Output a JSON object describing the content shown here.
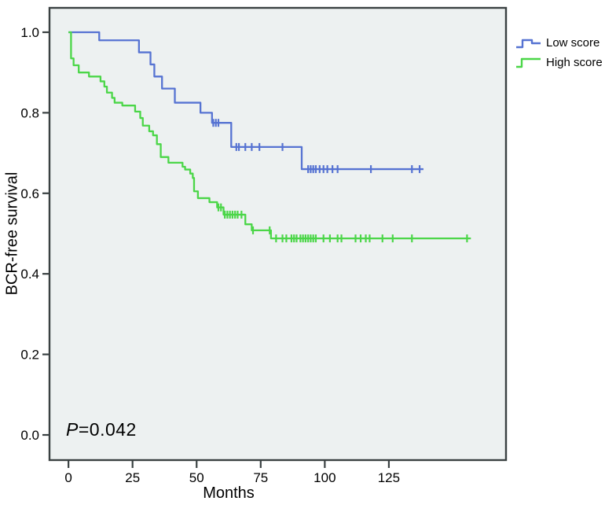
{
  "chart_data": {
    "type": "line",
    "subtype": "kaplan-meier-step-survival",
    "title": "",
    "xlabel": "Months",
    "ylabel": "BCR-free survival",
    "xlim": [
      -7.4,
      170.7
    ],
    "ylim": [
      -0.0625,
      1.0605
    ],
    "xticks": [
      0,
      25,
      50,
      75,
      100,
      125
    ],
    "yticks": [
      0.0,
      0.2,
      0.4,
      0.6,
      0.8,
      1.0
    ],
    "grid": false,
    "legend_position": "top-right-outside",
    "plot_bg_color": "#edf1f1",
    "axis_color": "#3a4142",
    "annotation": {
      "p_italic": "P",
      "p_rest": "=0.042"
    },
    "series": [
      {
        "name": "Low score",
        "color": "#5673d2",
        "end": 138.5,
        "steps": [
          {
            "t": 0,
            "s": 1.0
          },
          {
            "t": 12,
            "s": 0.98
          },
          {
            "t": 27.5,
            "s": 0.95
          },
          {
            "t": 32,
            "s": 0.92
          },
          {
            "t": 33.5,
            "s": 0.89
          },
          {
            "t": 36.5,
            "s": 0.86
          },
          {
            "t": 41.5,
            "s": 0.825
          },
          {
            "t": 51.5,
            "s": 0.8
          },
          {
            "t": 56,
            "s": 0.775
          },
          {
            "t": 63.5,
            "s": 0.715
          },
          {
            "t": 91,
            "s": 0.66
          }
        ],
        "censors": [
          56.5,
          57.5,
          58.5,
          65.5,
          66.5,
          69,
          71.5,
          74.5,
          83.5,
          93.5,
          94.5,
          95.5,
          96.5,
          98,
          99.5,
          101,
          103,
          105,
          118,
          134,
          137
        ]
      },
      {
        "name": "High score",
        "color": "#4bd648",
        "end": 157,
        "steps": [
          {
            "t": 0,
            "s": 1.0
          },
          {
            "t": 1,
            "s": 0.935
          },
          {
            "t": 2,
            "s": 0.918
          },
          {
            "t": 4,
            "s": 0.9
          },
          {
            "t": 8,
            "s": 0.89
          },
          {
            "t": 12.5,
            "s": 0.878
          },
          {
            "t": 14,
            "s": 0.865
          },
          {
            "t": 15,
            "s": 0.85
          },
          {
            "t": 17,
            "s": 0.837
          },
          {
            "t": 18,
            "s": 0.825
          },
          {
            "t": 21,
            "s": 0.818
          },
          {
            "t": 26,
            "s": 0.803
          },
          {
            "t": 28,
            "s": 0.787
          },
          {
            "t": 29,
            "s": 0.768
          },
          {
            "t": 31.5,
            "s": 0.754
          },
          {
            "t": 33,
            "s": 0.744
          },
          {
            "t": 34.5,
            "s": 0.722
          },
          {
            "t": 36,
            "s": 0.69
          },
          {
            "t": 39,
            "s": 0.676
          },
          {
            "t": 44.5,
            "s": 0.666
          },
          {
            "t": 45.5,
            "s": 0.659
          },
          {
            "t": 47.5,
            "s": 0.649
          },
          {
            "t": 48.5,
            "s": 0.638
          },
          {
            "t": 49,
            "s": 0.605
          },
          {
            "t": 50.5,
            "s": 0.588
          },
          {
            "t": 55,
            "s": 0.578
          },
          {
            "t": 58,
            "s": 0.565
          },
          {
            "t": 60.5,
            "s": 0.547
          },
          {
            "t": 69,
            "s": 0.523
          },
          {
            "t": 71.5,
            "s": 0.508
          },
          {
            "t": 79,
            "s": 0.488
          }
        ],
        "censors": [
          58.5,
          59.5,
          61,
          62,
          63,
          64,
          65,
          66,
          67.5,
          72,
          78.5,
          81,
          83.5,
          85,
          87,
          88,
          89,
          90.5,
          91.5,
          92.5,
          93.5,
          94.5,
          95.5,
          96.5,
          99.5,
          102,
          105,
          106.5,
          112,
          114,
          116,
          117.5,
          122.5,
          126.5,
          134,
          155.5
        ]
      }
    ]
  }
}
